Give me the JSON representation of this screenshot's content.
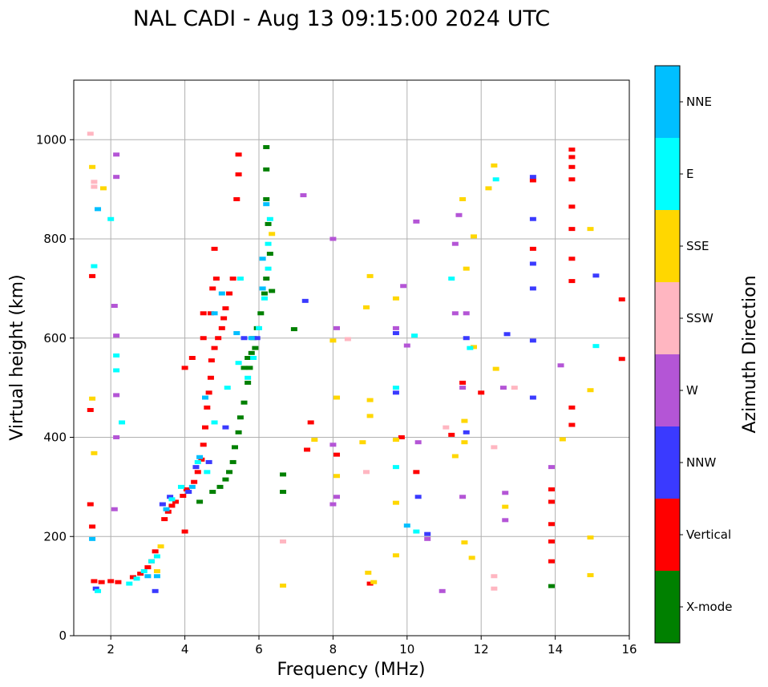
{
  "chart_data": {
    "type": "scatter",
    "title": "NAL CADI - Aug 13 09:15:00 2024 UTC",
    "xlabel": "Frequency (MHz)",
    "ylabel": "Virtual height (km)",
    "xlim": [
      1,
      16
    ],
    "ylim": [
      0,
      1120
    ],
    "xticks": [
      2,
      4,
      6,
      8,
      10,
      12,
      14,
      16
    ],
    "yticks": [
      0,
      200,
      400,
      600,
      800,
      1000
    ],
    "grid": true,
    "colorbar": {
      "label": "Azimuth Direction",
      "categories": [
        {
          "name": "X-mode",
          "color": "#008000"
        },
        {
          "name": "Vertical",
          "color": "#ff0000"
        },
        {
          "name": "NNW",
          "color": "#3a3aff"
        },
        {
          "name": "W",
          "color": "#b455d6"
        },
        {
          "name": "SSW",
          "color": "#ffb6c1"
        },
        {
          "name": "SSE",
          "color": "#ffd700"
        },
        {
          "name": "E",
          "color": "#00ffff"
        },
        {
          "name": "NNE",
          "color": "#00bfff"
        }
      ]
    },
    "series": [
      {
        "name": "Vertical",
        "color": "#ff0000",
        "points": [
          [
            1.55,
            110
          ],
          [
            1.75,
            108
          ],
          [
            2.0,
            110
          ],
          [
            2.2,
            108
          ],
          [
            2.6,
            118
          ],
          [
            2.8,
            125
          ],
          [
            3.0,
            138
          ],
          [
            3.1,
            150
          ],
          [
            3.2,
            170
          ],
          [
            3.45,
            235
          ],
          [
            3.55,
            250
          ],
          [
            3.65,
            262
          ],
          [
            3.75,
            270
          ],
          [
            3.95,
            282
          ],
          [
            4.05,
            295
          ],
          [
            4.25,
            310
          ],
          [
            4.35,
            330
          ],
          [
            4.45,
            355
          ],
          [
            4.5,
            385
          ],
          [
            4.55,
            420
          ],
          [
            4.6,
            460
          ],
          [
            4.65,
            490
          ],
          [
            4.7,
            520
          ],
          [
            4.72,
            555
          ],
          [
            4.8,
            580
          ],
          [
            4.9,
            600
          ],
          [
            5.0,
            620
          ],
          [
            5.05,
            640
          ],
          [
            5.1,
            660
          ],
          [
            5.2,
            690
          ],
          [
            5.3,
            720
          ],
          [
            4.7,
            650
          ],
          [
            4.75,
            700
          ],
          [
            4.8,
            780
          ],
          [
            5.4,
            880
          ],
          [
            5.45,
            930
          ],
          [
            5.45,
            970
          ],
          [
            4.5,
            600
          ],
          [
            4.2,
            560
          ],
          [
            4.0,
            540
          ],
          [
            1.45,
            455
          ],
          [
            1.45,
            265
          ],
          [
            1.5,
            220
          ],
          [
            1.5,
            725
          ],
          [
            4.0,
            210
          ],
          [
            4.5,
            650
          ],
          [
            4.85,
            720
          ],
          [
            7.4,
            430
          ],
          [
            7.3,
            375
          ],
          [
            8.1,
            365
          ],
          [
            9.0,
            105
          ],
          [
            9.85,
            400
          ],
          [
            10.25,
            330
          ],
          [
            11.2,
            405
          ],
          [
            11.5,
            510
          ],
          [
            12.0,
            490
          ],
          [
            13.4,
            918
          ],
          [
            13.4,
            780
          ],
          [
            13.9,
            295
          ],
          [
            13.9,
            270
          ],
          [
            13.9,
            225
          ],
          [
            13.9,
            190
          ],
          [
            13.9,
            150
          ],
          [
            14.45,
            980
          ],
          [
            14.45,
            965
          ],
          [
            14.45,
            945
          ],
          [
            14.45,
            920
          ],
          [
            14.45,
            865
          ],
          [
            14.45,
            820
          ],
          [
            14.45,
            760
          ],
          [
            14.45,
            715
          ],
          [
            14.45,
            460
          ],
          [
            14.45,
            425
          ],
          [
            15.8,
            678
          ],
          [
            15.8,
            558
          ]
        ]
      },
      {
        "name": "X-mode",
        "color": "#008000",
        "points": [
          [
            4.4,
            270
          ],
          [
            4.75,
            290
          ],
          [
            4.95,
            300
          ],
          [
            5.1,
            315
          ],
          [
            5.2,
            330
          ],
          [
            5.3,
            350
          ],
          [
            5.35,
            380
          ],
          [
            5.45,
            410
          ],
          [
            5.5,
            440
          ],
          [
            5.6,
            470
          ],
          [
            5.7,
            510
          ],
          [
            5.75,
            540
          ],
          [
            5.8,
            570
          ],
          [
            5.85,
            600
          ],
          [
            5.95,
            620
          ],
          [
            6.05,
            650
          ],
          [
            6.15,
            690
          ],
          [
            6.2,
            720
          ],
          [
            6.3,
            770
          ],
          [
            6.25,
            830
          ],
          [
            6.2,
            880
          ],
          [
            6.2,
            940
          ],
          [
            6.2,
            985
          ],
          [
            6.35,
            695
          ],
          [
            6.65,
            325
          ],
          [
            6.65,
            290
          ],
          [
            6.95,
            618
          ],
          [
            13.9,
            100
          ],
          [
            5.6,
            540
          ],
          [
            5.9,
            580
          ],
          [
            5.7,
            560
          ]
        ]
      },
      {
        "name": "NNW",
        "color": "#3a3aff",
        "points": [
          [
            1.6,
            95
          ],
          [
            3.2,
            90
          ],
          [
            3.4,
            265
          ],
          [
            3.6,
            280
          ],
          [
            4.1,
            290
          ],
          [
            4.3,
            340
          ],
          [
            4.65,
            350
          ],
          [
            5.1,
            420
          ],
          [
            5.6,
            600
          ],
          [
            5.95,
            600
          ],
          [
            7.25,
            675
          ],
          [
            9.7,
            490
          ],
          [
            9.7,
            610
          ],
          [
            10.3,
            280
          ],
          [
            10.55,
            205
          ],
          [
            11.6,
            600
          ],
          [
            11.6,
            410
          ],
          [
            12.7,
            608
          ],
          [
            13.4,
            925
          ],
          [
            13.4,
            840
          ],
          [
            13.4,
            750
          ],
          [
            13.4,
            700
          ],
          [
            13.4,
            595
          ],
          [
            13.4,
            480
          ],
          [
            15.1,
            726
          ]
        ]
      },
      {
        "name": "W",
        "color": "#b455d6",
        "points": [
          [
            2.15,
            970
          ],
          [
            2.15,
            925
          ],
          [
            2.1,
            665
          ],
          [
            2.15,
            605
          ],
          [
            2.15,
            485
          ],
          [
            2.15,
            400
          ],
          [
            2.1,
            255
          ],
          [
            7.2,
            888
          ],
          [
            8.0,
            800
          ],
          [
            8.1,
            620
          ],
          [
            8.0,
            385
          ],
          [
            8.0,
            265
          ],
          [
            8.1,
            280
          ],
          [
            9.7,
            620
          ],
          [
            9.9,
            705
          ],
          [
            10.25,
            835
          ],
          [
            10.0,
            585
          ],
          [
            10.3,
            390
          ],
          [
            10.55,
            195
          ],
          [
            10.95,
            90
          ],
          [
            11.4,
            848
          ],
          [
            11.3,
            790
          ],
          [
            11.3,
            650
          ],
          [
            11.6,
            650
          ],
          [
            11.5,
            500
          ],
          [
            11.5,
            280
          ],
          [
            12.6,
            500
          ],
          [
            12.65,
            288
          ],
          [
            12.65,
            233
          ],
          [
            13.9,
            340
          ],
          [
            14.15,
            545
          ]
        ]
      },
      {
        "name": "SSW",
        "color": "#ffb6c1",
        "points": [
          [
            1.45,
            1012
          ],
          [
            1.55,
            915
          ],
          [
            1.55,
            905
          ],
          [
            8.4,
            598
          ],
          [
            8.9,
            330
          ],
          [
            6.65,
            190
          ],
          [
            11.05,
            420
          ],
          [
            12.35,
            380
          ],
          [
            12.35,
            120
          ],
          [
            12.35,
            95
          ],
          [
            12.9,
            500
          ]
        ]
      },
      {
        "name": "SSE",
        "color": "#ffd700",
        "points": [
          [
            1.5,
            945
          ],
          [
            1.5,
            478
          ],
          [
            1.55,
            368
          ],
          [
            1.8,
            902
          ],
          [
            3.25,
            130
          ],
          [
            3.35,
            180
          ],
          [
            6.35,
            810
          ],
          [
            6.65,
            101
          ],
          [
            7.5,
            395
          ],
          [
            8.0,
            595
          ],
          [
            8.1,
            480
          ],
          [
            8.1,
            322
          ],
          [
            8.8,
            390
          ],
          [
            8.9,
            662
          ],
          [
            9.0,
            725
          ],
          [
            9.0,
            475
          ],
          [
            9.0,
            443
          ],
          [
            8.95,
            127
          ],
          [
            9.1,
            108
          ],
          [
            9.7,
            680
          ],
          [
            9.7,
            395
          ],
          [
            9.7,
            268
          ],
          [
            9.7,
            162
          ],
          [
            11.3,
            362
          ],
          [
            11.5,
            880
          ],
          [
            11.6,
            740
          ],
          [
            11.8,
            805
          ],
          [
            11.8,
            582
          ],
          [
            11.55,
            433
          ],
          [
            11.55,
            390
          ],
          [
            11.55,
            188
          ],
          [
            11.75,
            157
          ],
          [
            12.2,
            902
          ],
          [
            12.35,
            948
          ],
          [
            12.4,
            538
          ],
          [
            12.65,
            260
          ],
          [
            14.2,
            396
          ],
          [
            14.95,
            820
          ],
          [
            14.95,
            495
          ],
          [
            14.95,
            198
          ],
          [
            14.95,
            122
          ]
        ]
      },
      {
        "name": "E",
        "color": "#00ffff",
        "points": [
          [
            1.55,
            745
          ],
          [
            1.65,
            90
          ],
          [
            2.0,
            840
          ],
          [
            2.15,
            565
          ],
          [
            2.15,
            535
          ],
          [
            2.3,
            430
          ],
          [
            2.5,
            105
          ],
          [
            2.7,
            115
          ],
          [
            2.9,
            130
          ],
          [
            3.1,
            150
          ],
          [
            3.25,
            160
          ],
          [
            3.65,
            275
          ],
          [
            3.9,
            300
          ],
          [
            4.35,
            350
          ],
          [
            4.6,
            330
          ],
          [
            4.8,
            430
          ],
          [
            5.15,
            500
          ],
          [
            5.5,
            720
          ],
          [
            5.45,
            550
          ],
          [
            5.7,
            520
          ],
          [
            5.85,
            560
          ],
          [
            6.0,
            620
          ],
          [
            6.15,
            680
          ],
          [
            6.25,
            740
          ],
          [
            6.25,
            790
          ],
          [
            6.3,
            840
          ],
          [
            9.7,
            340
          ],
          [
            9.7,
            500
          ],
          [
            10.2,
            605
          ],
          [
            10.25,
            210
          ],
          [
            11.2,
            720
          ],
          [
            11.7,
            580
          ],
          [
            12.4,
            920
          ],
          [
            15.1,
            584
          ]
        ]
      },
      {
        "name": "NNE",
        "color": "#00bfff",
        "points": [
          [
            1.5,
            195
          ],
          [
            1.65,
            860
          ],
          [
            3.0,
            120
          ],
          [
            3.25,
            120
          ],
          [
            3.5,
            255
          ],
          [
            4.2,
            300
          ],
          [
            4.4,
            360
          ],
          [
            4.55,
            480
          ],
          [
            4.8,
            650
          ],
          [
            5.0,
            690
          ],
          [
            5.4,
            610
          ],
          [
            5.8,
            600
          ],
          [
            6.1,
            700
          ],
          [
            6.1,
            760
          ],
          [
            6.2,
            870
          ],
          [
            10.0,
            222
          ]
        ]
      }
    ]
  }
}
